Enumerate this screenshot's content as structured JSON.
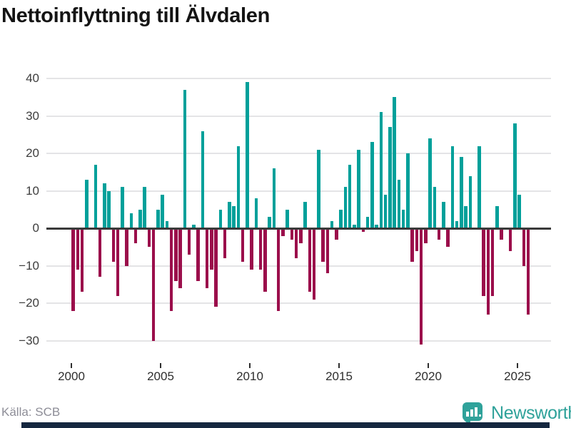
{
  "title": "Nettoinflyttning till Älvdalen",
  "footer": {
    "source_label": "Källa: SCB",
    "logo_text": "Newsworthy"
  },
  "colors": {
    "positive_bar": "#00A09A",
    "negative_bar": "#9B0E4B",
    "brand_teal": "#2FA29A",
    "footer_bar": "#15273F",
    "gridline": "#e4e4e6",
    "zero_line": "#3a3a3a"
  },
  "chart_data": {
    "type": "bar",
    "title": "Nettoinflyttning till Älvdalen",
    "xlabel": "",
    "ylabel": "",
    "ylim": [
      -33,
      41
    ],
    "grid": "horizontal",
    "legend": "none",
    "y_tick_values": [
      40,
      30,
      20,
      10,
      0,
      -10,
      -20,
      -30
    ],
    "y_tick_labels": [
      "40",
      "30",
      "20",
      "10",
      "0",
      "−10",
      "−20",
      "−30"
    ],
    "x_tick_years": [
      2000,
      2005,
      2010,
      2015,
      2020,
      2025
    ],
    "x_tick_labels": [
      "2000",
      "2005",
      "2010",
      "2015",
      "2020",
      "2025"
    ],
    "source_label": "Källa: SCB",
    "categories": [
      "2000 Q1",
      "2000 Q2",
      "2000 Q3",
      "2000 Q4",
      "2001 Q1",
      "2001 Q2",
      "2001 Q3",
      "2001 Q4",
      "2002 Q1",
      "2002 Q2",
      "2002 Q3",
      "2002 Q4",
      "2003 Q1",
      "2003 Q2",
      "2003 Q3",
      "2003 Q4",
      "2004 Q1",
      "2004 Q2",
      "2004 Q3",
      "2004 Q4",
      "2005 Q1",
      "2005 Q2",
      "2005 Q3",
      "2005 Q4",
      "2006 Q1",
      "2006 Q2",
      "2006 Q3",
      "2006 Q4",
      "2007 Q1",
      "2007 Q2",
      "2007 Q3",
      "2007 Q4",
      "2008 Q1",
      "2008 Q2",
      "2008 Q3",
      "2008 Q4",
      "2009 Q1",
      "2009 Q2",
      "2009 Q3",
      "2009 Q4",
      "2010 Q1",
      "2010 Q2",
      "2010 Q3",
      "2010 Q4",
      "2011 Q1",
      "2011 Q2",
      "2011 Q3",
      "2011 Q4",
      "2012 Q1",
      "2012 Q2",
      "2012 Q3",
      "2012 Q4",
      "2013 Q1",
      "2013 Q2",
      "2013 Q3",
      "2013 Q4",
      "2014 Q1",
      "2014 Q2",
      "2014 Q3",
      "2014 Q4",
      "2015 Q1",
      "2015 Q2",
      "2015 Q3",
      "2015 Q4",
      "2016 Q1",
      "2016 Q2",
      "2016 Q3",
      "2016 Q4",
      "2017 Q1",
      "2017 Q2",
      "2017 Q3",
      "2017 Q4",
      "2018 Q1",
      "2018 Q2",
      "2018 Q3",
      "2018 Q4",
      "2019 Q1",
      "2019 Q2",
      "2019 Q3",
      "2019 Q4",
      "2020 Q1",
      "2020 Q2",
      "2020 Q3",
      "2020 Q4",
      "2021 Q1",
      "2021 Q2",
      "2021 Q3",
      "2021 Q4",
      "2022 Q1",
      "2022 Q2",
      "2022 Q3",
      "2022 Q4",
      "2023 Q1",
      "2023 Q2",
      "2023 Q3",
      "2023 Q4",
      "2024 Q1",
      "2024 Q2",
      "2024 Q3",
      "2024 Q4",
      "2025 Q1",
      "2025 Q2",
      "2025 Q3"
    ],
    "values": [
      -22,
      -11,
      -17,
      13,
      0,
      17,
      -13,
      12,
      10,
      -9,
      -18,
      11,
      -10,
      4,
      -4,
      5,
      11,
      -5,
      -30,
      5,
      9,
      2,
      -22,
      -14,
      -16,
      37,
      -7,
      1,
      -14,
      26,
      -16,
      -11,
      -21,
      5,
      -8,
      7,
      6,
      22,
      -9,
      39,
      -11,
      8,
      -11,
      -17,
      3,
      16,
      -22,
      -2,
      5,
      -3,
      -8,
      -4,
      7,
      -17,
      -19,
      21,
      -9,
      -12,
      2,
      -3,
      5,
      11,
      17,
      1,
      21,
      -1,
      3,
      23,
      1,
      31,
      9,
      27,
      35,
      13,
      5,
      20,
      -9,
      -6,
      -31,
      -4,
      24,
      11,
      -3,
      7,
      -5,
      22,
      2,
      19,
      6,
      14,
      0,
      22,
      -18,
      -23,
      -18,
      6,
      -3,
      0,
      -6,
      28,
      9,
      -10,
      -23
    ]
  }
}
